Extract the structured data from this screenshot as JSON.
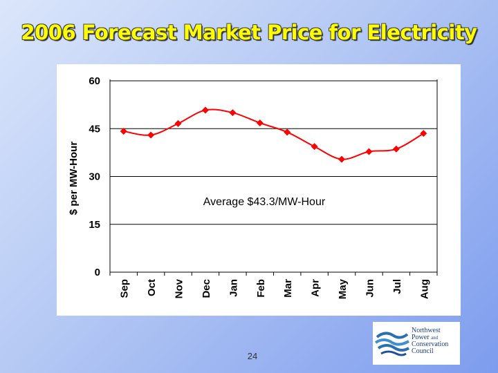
{
  "slide": {
    "title": "2006 Forecast Market Price for Electricity",
    "page_number": "24"
  },
  "logo": {
    "line1": "Northwest",
    "line2_a": "Power",
    "line2_b": "and",
    "line3": "Conservation",
    "line4": "Council",
    "icon": "swirl-logo-icon"
  },
  "colors": {
    "series": "#ff0000",
    "title": "#ffff00",
    "grid": "#000000"
  },
  "chart_data": {
    "type": "line",
    "title": "",
    "xlabel": "",
    "ylabel": "$ per MW-Hour",
    "categories": [
      "Sep",
      "Oct",
      "Nov",
      "Dec",
      "Jan",
      "Feb",
      "Mar",
      "Apr",
      "May",
      "Jun",
      "Jul",
      "Aug"
    ],
    "series": [
      {
        "name": "Forecast Market Price",
        "values": [
          44.2,
          43.0,
          46.6,
          50.8,
          50.0,
          46.8,
          43.9,
          39.4,
          35.4,
          37.8,
          38.6,
          43.5
        ]
      }
    ],
    "ylim": [
      0,
      60
    ],
    "yticks": [
      0,
      15,
      30,
      45,
      60
    ],
    "ytick_labels": [
      "0",
      "15",
      "30",
      "45",
      "60"
    ],
    "grid": "horizontal",
    "legend": "none",
    "annotation": "Average $43.3/MW-Hour"
  }
}
